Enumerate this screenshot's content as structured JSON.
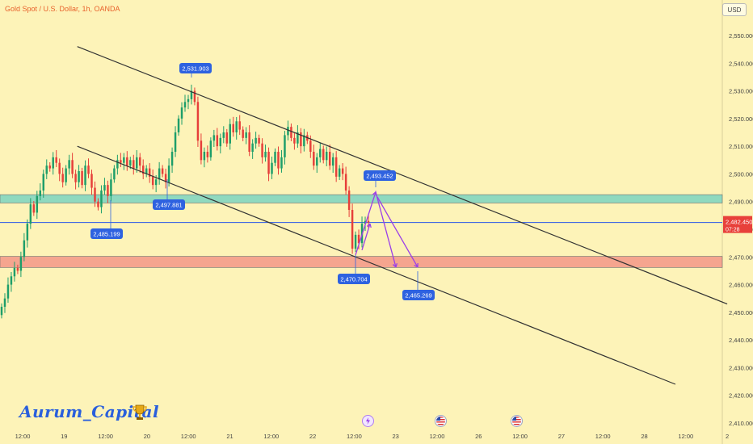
{
  "header": {
    "symbol_title": "Gold Spot / U.S. Dollar, 1h, OANDA",
    "currency_button": "USD"
  },
  "watermark": {
    "text": "Aurum_Capital"
  },
  "colors": {
    "background": "#fdf3b8",
    "candle_up": "#1e9e6a",
    "candle_down": "#e63f3a",
    "channel_line": "#333333",
    "resistance_zone": "#8fd9bf",
    "support_zone": "#f5a58f",
    "price_line": "#2956e8",
    "projection_arrow": "#9b3fe8",
    "label_bg": "#2e62e0",
    "current_price_bg": "#e8403a"
  },
  "chart_data": {
    "type": "candlestick",
    "symbol": "Gold Spot / U.S. Dollar",
    "timeframe": "1h",
    "source": "OANDA",
    "ylim": [
      2405,
      2555
    ],
    "y_ticks": [
      "2,550.000",
      "2,540.000",
      "2,530.000",
      "2,520.000",
      "2,510.000",
      "2,500.000",
      "2,490.000",
      "2,480.000",
      "2,470.000",
      "2,460.000",
      "2,450.000",
      "2,440.000",
      "2,430.000",
      "2,420.000",
      "2,410.000"
    ],
    "x_ticks": [
      "12:00",
      "19",
      "12:00",
      "20",
      "12:00",
      "21",
      "12:00",
      "22",
      "12:00",
      "23",
      "12:00",
      "26",
      "12:00",
      "27",
      "12:00",
      "28",
      "12:00",
      "2"
    ],
    "closes": [
      2452,
      2455,
      2460,
      2463,
      2466,
      2465,
      2470,
      2476,
      2482,
      2489,
      2486,
      2492,
      2494,
      2500,
      2503,
      2502,
      2506,
      2504,
      2500,
      2497,
      2502,
      2505,
      2500,
      2497,
      2501,
      2496,
      2503,
      2500,
      2495,
      2490,
      2488,
      2494,
      2496,
      2492,
      2498,
      2502,
      2505,
      2504,
      2506,
      2503,
      2505,
      2502,
      2506,
      2503,
      2500,
      2502,
      2499,
      2496,
      2498,
      2502,
      2500,
      2497,
      2503,
      2508,
      2515,
      2520,
      2524,
      2526,
      2527,
      2530,
      2526,
      2512,
      2505,
      2508,
      2506,
      2512,
      2514,
      2510,
      2513,
      2515,
      2511,
      2518,
      2515,
      2519,
      2516,
      2513,
      2515,
      2508,
      2511,
      2513,
      2511,
      2506,
      2508,
      2500,
      2504,
      2508,
      2502,
      2506,
      2514,
      2517,
      2513,
      2511,
      2515,
      2510,
      2514,
      2512,
      2508,
      2503,
      2506,
      2509,
      2505,
      2508,
      2503,
      2506,
      2499,
      2502,
      2500,
      2494,
      2487,
      2473,
      2478,
      2475,
      2482,
      2483,
      2482.45
    ],
    "channel_upper": {
      "from": {
        "x": "Aug 19 00:00",
        "y": 2546
      },
      "to": {
        "x": "Aug 28 18:00",
        "y": 2453
      }
    },
    "channel_lower": {
      "from": {
        "x": "Aug 19 00:00",
        "y": 2510
      },
      "to": {
        "x": "Aug 28 14:00",
        "y": 2424
      }
    },
    "zones": [
      {
        "name": "resistance",
        "from": 2489.5,
        "to": 2492.5
      },
      {
        "name": "support",
        "from": 2466.2,
        "to": 2470.2
      }
    ],
    "horizontal_lines": [
      {
        "name": "current-price",
        "y": 2482.45
      }
    ],
    "annotations": [
      {
        "label": "2,531.903",
        "y": 2531.903
      },
      {
        "label": "2,497.881",
        "y": 2497.881
      },
      {
        "label": "2,485.199",
        "y": 2485.199
      },
      {
        "label": "2,493.452",
        "y": 2493.452
      },
      {
        "label": "2,470.704",
        "y": 2470.704
      },
      {
        "label": "2,465.269",
        "y": 2465.269
      }
    ],
    "current_price": {
      "value": "2,482.450",
      "countdown": "07:28"
    },
    "projection": [
      2470.704,
      2493.452,
      2466.3
    ],
    "events": [
      "lightning",
      "us-flag",
      "us-flag"
    ]
  }
}
